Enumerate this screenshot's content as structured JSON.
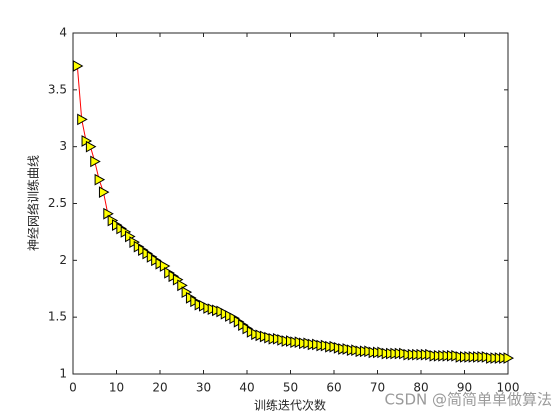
{
  "chart_data": {
    "type": "line",
    "xlabel": "训练迭代次数",
    "ylabel": "神经网络训练曲线",
    "watermark": "CSDN @简简单单做算法",
    "x": [
      1,
      2,
      3,
      4,
      5,
      6,
      7,
      8,
      9,
      10,
      11,
      12,
      13,
      14,
      15,
      16,
      17,
      18,
      19,
      20,
      21,
      22,
      23,
      24,
      25,
      26,
      27,
      28,
      29,
      30,
      31,
      32,
      33,
      34,
      35,
      36,
      37,
      38,
      39,
      40,
      41,
      42,
      43,
      44,
      45,
      46,
      47,
      48,
      49,
      50,
      51,
      52,
      53,
      54,
      55,
      56,
      57,
      58,
      59,
      60,
      61,
      62,
      63,
      64,
      65,
      66,
      67,
      68,
      69,
      70,
      71,
      72,
      73,
      74,
      75,
      76,
      77,
      78,
      79,
      80,
      81,
      82,
      83,
      84,
      85,
      86,
      87,
      88,
      89,
      90,
      91,
      92,
      93,
      94,
      95,
      96,
      97,
      98,
      99,
      100
    ],
    "series": [
      {
        "name": null,
        "color": "#ff0000",
        "marker_color": "#ffff00",
        "values": [
          3.71,
          3.24,
          3.05,
          3.0,
          2.87,
          2.71,
          2.6,
          2.41,
          2.35,
          2.31,
          2.28,
          2.25,
          2.21,
          2.16,
          2.12,
          2.09,
          2.06,
          2.03,
          2.0,
          1.97,
          1.95,
          1.89,
          1.86,
          1.83,
          1.78,
          1.72,
          1.67,
          1.64,
          1.61,
          1.6,
          1.58,
          1.57,
          1.56,
          1.55,
          1.53,
          1.51,
          1.49,
          1.46,
          1.43,
          1.4,
          1.37,
          1.35,
          1.34,
          1.33,
          1.32,
          1.31,
          1.31,
          1.3,
          1.29,
          1.29,
          1.28,
          1.28,
          1.27,
          1.27,
          1.26,
          1.26,
          1.25,
          1.25,
          1.24,
          1.24,
          1.23,
          1.22,
          1.22,
          1.21,
          1.21,
          1.2,
          1.2,
          1.2,
          1.19,
          1.19,
          1.19,
          1.18,
          1.18,
          1.18,
          1.18,
          1.18,
          1.17,
          1.17,
          1.17,
          1.17,
          1.17,
          1.17,
          1.16,
          1.16,
          1.16,
          1.16,
          1.16,
          1.16,
          1.15,
          1.15,
          1.15,
          1.15,
          1.15,
          1.15,
          1.15,
          1.14,
          1.14,
          1.14,
          1.14,
          1.14
        ]
      }
    ],
    "xlim": [
      0,
      100
    ],
    "xticks": [
      0,
      10,
      20,
      30,
      40,
      50,
      60,
      70,
      80,
      90,
      100
    ],
    "ylim": [
      1,
      4
    ],
    "yticks": [
      1,
      1.5,
      2,
      2.5,
      3,
      3.5,
      4
    ],
    "grid": false
  }
}
